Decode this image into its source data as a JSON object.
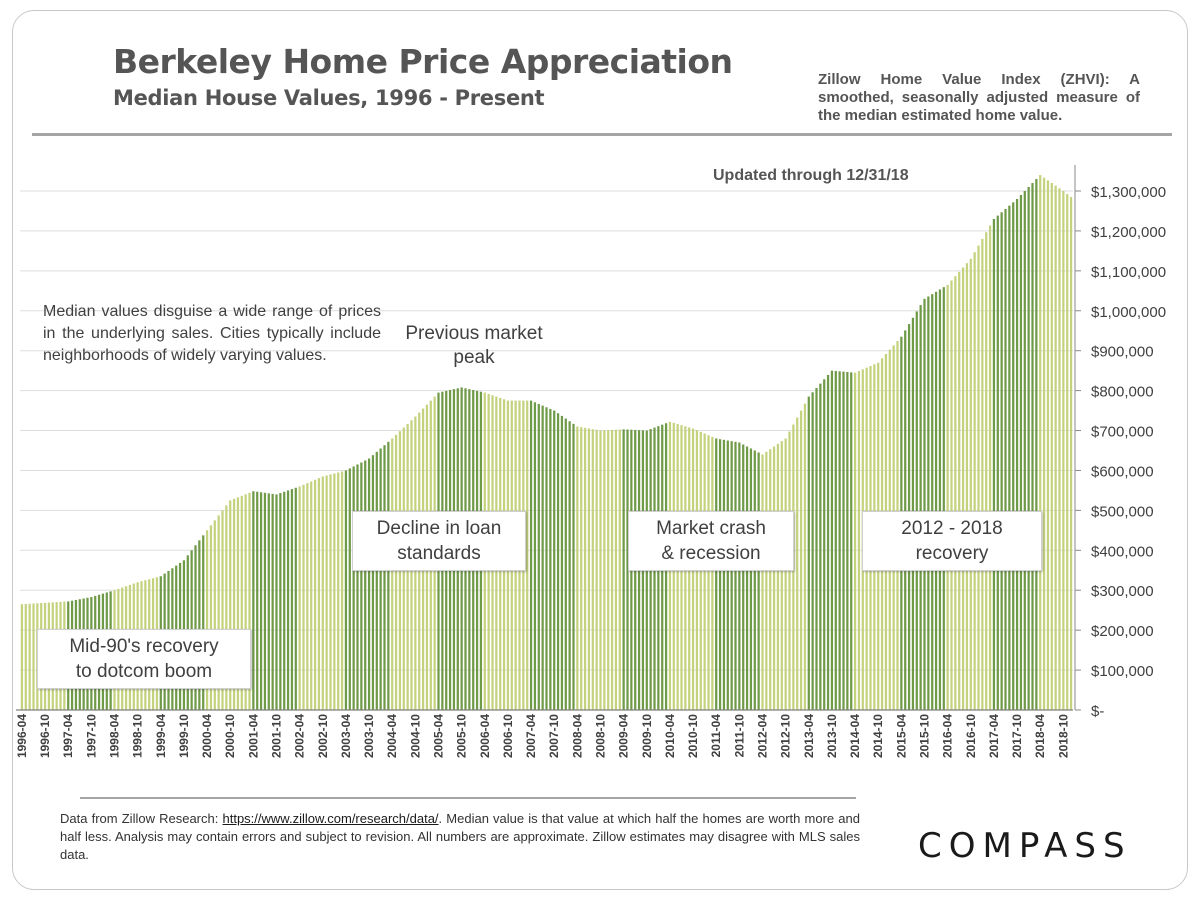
{
  "header": {
    "title": "Berkeley Home Price Appreciation",
    "subtitle": "Median House Values, 1996 - Present",
    "zhvi_note": "Zillow Home Value Index (ZHVI): A smoothed, seasonally adjusted measure of the median estimated home value."
  },
  "annotations": {
    "updated": "Updated through 12/31/18",
    "side_note": "Median values disguise a wide range of prices in the underlying sales. Cities typically include neighborhoods of widely varying values.",
    "peak": "Previous market peak",
    "callouts": [
      {
        "line1": "Mid-90's recovery",
        "line2": "to dotcom boom"
      },
      {
        "line1": "Decline in loan",
        "line2": "standards"
      },
      {
        "line1": "Market crash",
        "line2": "& recession"
      },
      {
        "line1": "2012 - 2018",
        "line2": "recovery"
      }
    ]
  },
  "footer": {
    "text_before": "Data from Zillow Research: ",
    "link": "https://www.zillow.com/research/data/",
    "text_after": ". Median value is that value at which half the homes are worth more and half less. Analysis may contain errors and subject to revision. All numbers are approximate. Zillow estimates may disagree with MLS sales data."
  },
  "logo": "COMPASS",
  "colors": {
    "bar_light": "#c5d27d",
    "bar_dark": "#6f9a48",
    "text": "#555555"
  },
  "chart_data": {
    "type": "bar",
    "title": "Berkeley Home Price Appreciation",
    "subtitle": "Median House Values, 1996 - Present",
    "xlabel": "",
    "ylabel": "",
    "ylim": [
      0,
      1300000
    ],
    "yticks": [
      0,
      100000,
      200000,
      300000,
      400000,
      500000,
      600000,
      700000,
      800000,
      900000,
      1000000,
      1100000,
      1200000,
      1300000
    ],
    "ytick_labels": [
      "$-",
      "$100,000",
      "$200,000",
      "$300,000",
      "$400,000",
      "$500,000",
      "$600,000",
      "$700,000",
      "$800,000",
      "$900,000",
      "$1,000,000",
      "$1,100,000",
      "$1,200,000",
      "$1,300,000"
    ],
    "x_tick_labels": [
      "1996-04",
      "1996-10",
      "1997-04",
      "1997-10",
      "1998-04",
      "1998-10",
      "1999-04",
      "1999-10",
      "2000-04",
      "2000-10",
      "2001-04",
      "2001-10",
      "2002-04",
      "2002-10",
      "2003-04",
      "2003-10",
      "2004-04",
      "2004-10",
      "2005-04",
      "2005-10",
      "2006-04",
      "2006-10",
      "2007-04",
      "2007-10",
      "2008-04",
      "2008-10",
      "2009-04",
      "2009-10",
      "2010-04",
      "2010-10",
      "2011-04",
      "2011-10",
      "2012-04",
      "2012-10",
      "2013-04",
      "2013-10",
      "2014-04",
      "2014-10",
      "2015-04",
      "2015-10",
      "2016-04",
      "2016-10",
      "2017-04",
      "2017-10",
      "2018-04",
      "2018-10"
    ],
    "series": [
      {
        "start": "1996-04",
        "end": "2018-12",
        "frequency": "monthly",
        "anchors": [
          [
            "1996-04",
            265000
          ],
          [
            "1997-04",
            272000
          ],
          [
            "1997-10",
            283000
          ],
          [
            "1998-04",
            300000
          ],
          [
            "1998-10",
            320000
          ],
          [
            "1999-04",
            335000
          ],
          [
            "1999-10",
            375000
          ],
          [
            "2000-04",
            450000
          ],
          [
            "2000-10",
            525000
          ],
          [
            "2001-04",
            548000
          ],
          [
            "2001-10",
            540000
          ],
          [
            "2002-04",
            560000
          ],
          [
            "2002-10",
            585000
          ],
          [
            "2003-04",
            600000
          ],
          [
            "2003-10",
            630000
          ],
          [
            "2004-04",
            680000
          ],
          [
            "2004-10",
            735000
          ],
          [
            "2005-04",
            795000
          ],
          [
            "2005-10",
            808000
          ],
          [
            "2006-04",
            795000
          ],
          [
            "2006-10",
            775000
          ],
          [
            "2007-04",
            775000
          ],
          [
            "2007-10",
            750000
          ],
          [
            "2008-04",
            710000
          ],
          [
            "2008-10",
            700000
          ],
          [
            "2009-04",
            703000
          ],
          [
            "2009-10",
            700000
          ],
          [
            "2010-04",
            722000
          ],
          [
            "2010-10",
            705000
          ],
          [
            "2011-04",
            680000
          ],
          [
            "2011-10",
            670000
          ],
          [
            "2012-04",
            640000
          ],
          [
            "2012-10",
            680000
          ],
          [
            "2013-04",
            785000
          ],
          [
            "2013-10",
            850000
          ],
          [
            "2014-04",
            845000
          ],
          [
            "2014-10",
            870000
          ],
          [
            "2015-04",
            935000
          ],
          [
            "2015-10",
            1030000
          ],
          [
            "2016-04",
            1065000
          ],
          [
            "2016-10",
            1130000
          ],
          [
            "2017-04",
            1230000
          ],
          [
            "2017-10",
            1280000
          ],
          [
            "2018-04",
            1340000
          ],
          [
            "2018-10",
            1300000
          ],
          [
            "2018-12",
            1285000
          ]
        ]
      }
    ],
    "grid": true,
    "legend": "none"
  }
}
